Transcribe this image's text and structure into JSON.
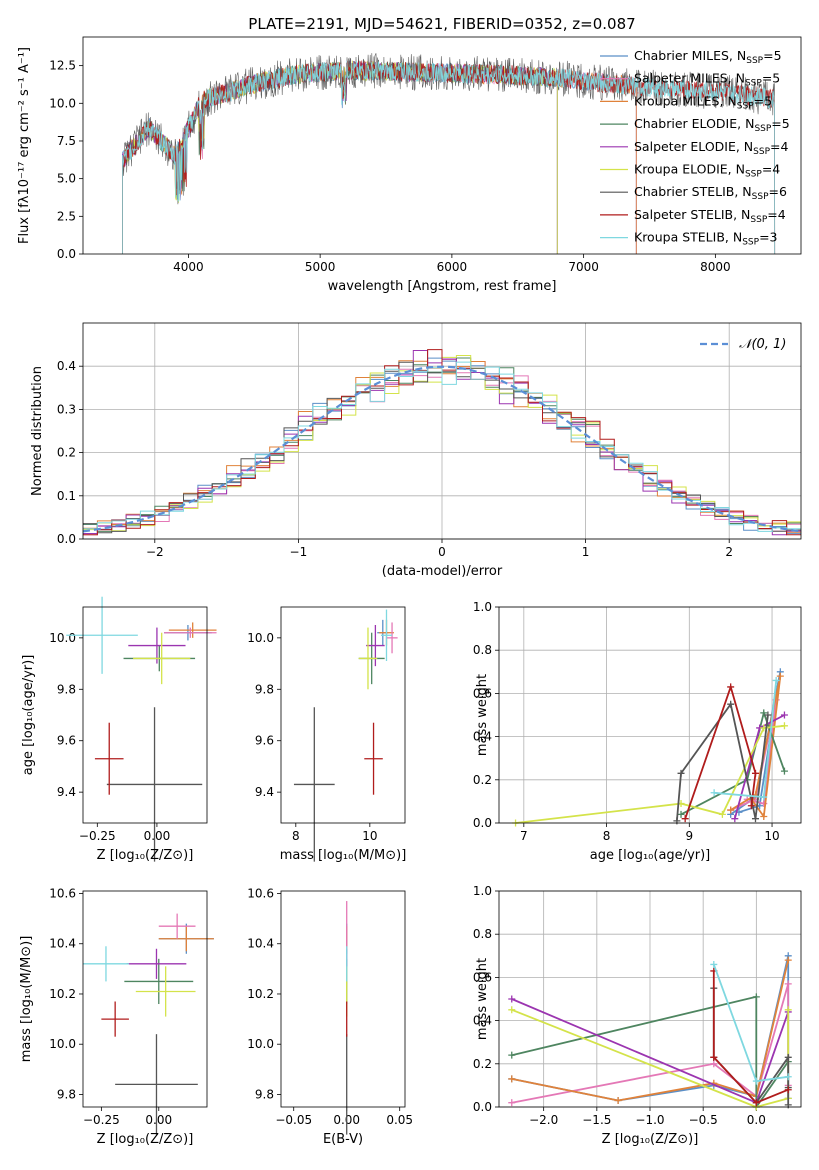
{
  "figure": {
    "title": "PLATE=2191, MJD=54621, FIBERID=0352, z=0.087"
  },
  "chart_data": [
    {
      "id": "spectrum",
      "type": "line",
      "xlabel": "wavelength [Angstrom, rest frame]",
      "ylabel": "Flux [fλ10⁻¹⁷ erg cm⁻² s⁻¹ A⁻¹]",
      "xlim": [
        3200,
        8650
      ],
      "ylim": [
        0,
        14.4
      ],
      "xticks": [
        "4000",
        "5000",
        "6000",
        "7000",
        "8000"
      ],
      "yticks": [
        "0.0",
        "2.5",
        "5.0",
        "7.5",
        "10.0",
        "12.5"
      ],
      "legend_position": "upper-right",
      "data_range_x": [
        3500,
        8450
      ],
      "anchors_x": [
        3500,
        3700,
        3900,
        4100,
        4300,
        4500,
        4800,
        5200,
        5600,
        6000,
        6400,
        6800,
        7200,
        7600,
        8000,
        8450
      ],
      "anchors_y": [
        6.2,
        8.4,
        6.5,
        10.2,
        10.7,
        11.3,
        11.9,
        12.2,
        12.1,
        12.0,
        11.9,
        11.7,
        11.3,
        11.0,
        10.8,
        10.3
      ],
      "series": [
        {
          "name": "Chabrier MILES, N_SSP=5",
          "color": "#5b8fc7",
          "x_end": 7400
        },
        {
          "name": "Salpeter MILES, N_SSP=5",
          "color": "#e478b6",
          "x_end": 7400
        },
        {
          "name": "Kroupa MILES, N_SSP=5",
          "color": "#e0823a",
          "x_end": 7400
        },
        {
          "name": "Chabrier ELODIE, N_SSP=5",
          "color": "#4e8560",
          "x_end": 6800
        },
        {
          "name": "Salpeter ELODIE, N_SSP=4",
          "color": "#9b35b0",
          "x_end": 6800
        },
        {
          "name": "Kroupa ELODIE, N_SSP=4",
          "color": "#d4e34a",
          "x_end": 6800
        },
        {
          "name": "Chabrier STELIB, N_SSP=6",
          "color": "#555555",
          "x_end": 8450
        },
        {
          "name": "Salpeter STELIB, N_SSP=4",
          "color": "#b01c1c",
          "x_end": 8450
        },
        {
          "name": "Kroupa STELIB, N_SSP=3",
          "color": "#7fd8e0",
          "x_end": 8450
        }
      ]
    },
    {
      "id": "residuals",
      "type": "histogram",
      "xlabel": "(data-model)/error",
      "ylabel": "Normed distribution",
      "xlim": [
        -2.5,
        2.5
      ],
      "ylim": [
        0,
        0.5
      ],
      "xticks": [
        "−2",
        "−1",
        "0",
        "1",
        "2"
      ],
      "yticks": [
        "0.0",
        "0.1",
        "0.2",
        "0.3",
        "0.4"
      ],
      "bin_width": 0.1,
      "grid": true,
      "reference_curve": {
        "label": "𝒩(0,1)",
        "color": "#5b8fd6",
        "style": "dashed",
        "mean": 0,
        "sigma": 1
      }
    },
    {
      "id": "age-vs-Z",
      "type": "scatter",
      "xlabel": "Z [log₁₀(Z/Z⊙)]",
      "ylabel": "age  [log₁₀(age/yr)]",
      "xlim": [
        -0.31,
        0.21
      ],
      "ylim": [
        9.28,
        10.12
      ],
      "xticks": [
        {
          "v": -0.25,
          "l": "−0.25"
        },
        {
          "v": 0,
          "l": "0.00"
        }
      ],
      "yticks": [
        {
          "v": 9.4,
          "l": "9.4"
        },
        {
          "v": 9.6,
          "l": "9.6"
        },
        {
          "v": 9.8,
          "l": "9.8"
        },
        {
          "v": 10.0,
          "l": "10.0"
        }
      ],
      "points": [
        {
          "x": 0.13,
          "y": 10.02,
          "xerr": 0.1,
          "yerr": 0.03,
          "color": "#5b8fc7"
        },
        {
          "x": 0.15,
          "y": 10.03,
          "xerr": 0.1,
          "yerr": 0.03,
          "color": "#e0823a"
        },
        {
          "x": 0.14,
          "y": 10.02,
          "xerr": 0.11,
          "yerr": 0.02,
          "color": "#e478b6"
        },
        {
          "x": 0.01,
          "y": 9.92,
          "xerr": 0.15,
          "yerr": 0.05,
          "color": "#4e8560"
        },
        {
          "x": 0.0,
          "y": 9.97,
          "xerr": 0.12,
          "yerr": 0.07,
          "color": "#9b35b0"
        },
        {
          "x": 0.02,
          "y": 9.92,
          "xerr": 0.12,
          "yerr": 0.1,
          "color": "#d4e34a"
        },
        {
          "x": -0.01,
          "y": 9.43,
          "xerr": 0.2,
          "yerr": 0.3,
          "color": "#555555"
        },
        {
          "x": -0.2,
          "y": 9.53,
          "xerr": 0.06,
          "yerr": 0.14,
          "color": "#b01c1c"
        },
        {
          "x": -0.23,
          "y": 10.01,
          "xerr": 0.15,
          "yerr": 0.15,
          "color": "#7fd8e0"
        }
      ]
    },
    {
      "id": "age-vs-mass",
      "type": "scatter",
      "xlabel": "mass [log₁₀(M/M⊙)]",
      "ylabel": "",
      "xlim": [
        7.6,
        10.95
      ],
      "ylim": [
        9.28,
        10.12
      ],
      "xticks": [
        {
          "v": 8,
          "l": "8"
        },
        {
          "v": 10,
          "l": "10"
        }
      ],
      "yticks": [
        {
          "v": 9.4,
          "l": "9.4"
        },
        {
          "v": 9.6,
          "l": "9.6"
        },
        {
          "v": 9.8,
          "l": "9.8"
        },
        {
          "v": 10.0,
          "l": "10.0"
        }
      ],
      "points": [
        {
          "x": 10.35,
          "y": 10.02,
          "xerr": 0.15,
          "yerr": 0.05,
          "color": "#5b8fc7"
        },
        {
          "x": 10.45,
          "y": 10.02,
          "xerr": 0.2,
          "yerr": 0.05,
          "color": "#e0823a"
        },
        {
          "x": 10.6,
          "y": 10.0,
          "xerr": 0.15,
          "yerr": 0.06,
          "color": "#e478b6"
        },
        {
          "x": 10.05,
          "y": 9.92,
          "xerr": 0.35,
          "yerr": 0.1,
          "color": "#4e8560"
        },
        {
          "x": 10.15,
          "y": 9.97,
          "xerr": 0.25,
          "yerr": 0.08,
          "color": "#9b35b0"
        },
        {
          "x": 9.95,
          "y": 9.92,
          "xerr": 0.25,
          "yerr": 0.12,
          "color": "#d4e34a"
        },
        {
          "x": 8.5,
          "y": 9.43,
          "xerr": 0.55,
          "yerr": 0.3,
          "color": "#555555"
        },
        {
          "x": 10.1,
          "y": 9.53,
          "xerr": 0.25,
          "yerr": 0.14,
          "color": "#b01c1c"
        },
        {
          "x": 10.45,
          "y": 10.01,
          "xerr": 0.15,
          "yerr": 0.1,
          "color": "#7fd8e0"
        }
      ]
    },
    {
      "id": "weight-vs-age",
      "type": "line",
      "xlabel": "age  [log₁₀(age/yr)]",
      "ylabel": "mass weight",
      "xlim": [
        6.7,
        10.35
      ],
      "ylim": [
        0,
        1.0
      ],
      "xticks": [
        {
          "v": 7,
          "l": "7"
        },
        {
          "v": 8,
          "l": "8"
        },
        {
          "v": 9,
          "l": "9"
        },
        {
          "v": 10,
          "l": "10"
        }
      ],
      "yticks": [
        {
          "v": 0,
          "l": "0.0"
        },
        {
          "v": 0.2,
          "l": "0.2"
        },
        {
          "v": 0.4,
          "l": "0.4"
        },
        {
          "v": 0.6,
          "l": "0.6"
        },
        {
          "v": 0.8,
          "l": "0.8"
        },
        {
          "v": 1.0,
          "l": "1.0"
        }
      ],
      "series": [
        {
          "name": "Chabrier MILES",
          "color": "#5b8fc7",
          "x": [
            9.5,
            9.8,
            10.1,
            9.85,
            9.6
          ],
          "y": [
            0.04,
            0.12,
            0.7,
            0.08,
            0.05
          ]
        },
        {
          "name": "Salpeter MILES",
          "color": "#e478b6",
          "x": [
            9.5,
            9.8,
            10.05,
            9.9,
            9.7
          ],
          "y": [
            0.06,
            0.11,
            0.57,
            0.09,
            0.11
          ]
        },
        {
          "name": "Kroupa MILES",
          "color": "#e0823a",
          "x": [
            9.5,
            9.8,
            10.1,
            9.9,
            9.75
          ],
          "y": [
            0.06,
            0.13,
            0.68,
            0.03,
            0.11
          ]
        },
        {
          "name": "Chabrier ELODIE",
          "color": "#4e8560",
          "x": [
            8.9,
            9.7,
            9.9,
            10.15
          ],
          "y": [
            0.04,
            0.2,
            0.51,
            0.24
          ]
        },
        {
          "name": "Salpeter ELODIE",
          "color": "#9b35b0",
          "x": [
            9.55,
            9.85,
            10.15
          ],
          "y": [
            0.02,
            0.44,
            0.5
          ]
        },
        {
          "name": "Kroupa ELODIE",
          "color": "#d4e34a",
          "x": [
            6.9,
            8.9,
            9.4,
            9.9,
            10.15
          ],
          "y": [
            0.0,
            0.09,
            0.04,
            0.44,
            0.45
          ]
        },
        {
          "name": "Chabrier STELIB",
          "color": "#555555",
          "x": [
            8.85,
            8.9,
            9.5,
            9.8,
            9.95
          ],
          "y": [
            0.01,
            0.23,
            0.55,
            0.02,
            0.5
          ]
        },
        {
          "name": "Salpeter STELIB",
          "color": "#b01c1c",
          "x": [
            8.95,
            9.5,
            9.8,
            9.75
          ],
          "y": [
            0.02,
            0.63,
            0.23,
            0.08
          ]
        },
        {
          "name": "Kroupa STELIB",
          "color": "#7fd8e0",
          "x": [
            9.3,
            9.9,
            10.05
          ],
          "y": [
            0.14,
            0.12,
            0.66
          ]
        }
      ]
    },
    {
      "id": "mass-vs-Z",
      "type": "scatter",
      "xlabel": "Z [log₁₀(Z/Z⊙)]",
      "ylabel": "mass [log₁₀(M/M⊙)]",
      "xlim": [
        -0.33,
        0.21
      ],
      "ylim": [
        9.75,
        10.61
      ],
      "xticks": [
        {
          "v": -0.25,
          "l": "−0.25"
        },
        {
          "v": 0,
          "l": "0.00"
        }
      ],
      "yticks": [
        {
          "v": 9.8,
          "l": "9.8"
        },
        {
          "v": 10.0,
          "l": "10.0"
        },
        {
          "v": 10.2,
          "l": "10.2"
        },
        {
          "v": 10.4,
          "l": "10.4"
        },
        {
          "v": 10.6,
          "l": "10.6"
        }
      ],
      "points": [
        {
          "x": 0.12,
          "y": 10.42,
          "xerr": 0.12,
          "yerr": 0.06,
          "color": "#5b8fc7"
        },
        {
          "x": 0.12,
          "y": 10.42,
          "xerr": 0.12,
          "yerr": 0.05,
          "color": "#e0823a"
        },
        {
          "x": 0.08,
          "y": 10.47,
          "xerr": 0.08,
          "yerr": 0.05,
          "color": "#e478b6"
        },
        {
          "x": 0.0,
          "y": 10.25,
          "xerr": 0.15,
          "yerr": 0.09,
          "color": "#4e8560"
        },
        {
          "x": -0.01,
          "y": 10.32,
          "xerr": 0.13,
          "yerr": 0.06,
          "color": "#9b35b0"
        },
        {
          "x": 0.03,
          "y": 10.21,
          "xerr": 0.13,
          "yerr": 0.1,
          "color": "#d4e34a"
        },
        {
          "x": -0.01,
          "y": 9.84,
          "xerr": 0.18,
          "yerr": 0.2,
          "color": "#555555"
        },
        {
          "x": -0.19,
          "y": 10.1,
          "xerr": 0.06,
          "yerr": 0.07,
          "color": "#b01c1c"
        },
        {
          "x": -0.23,
          "y": 10.32,
          "xerr": 0.1,
          "yerr": 0.07,
          "color": "#7fd8e0"
        }
      ]
    },
    {
      "id": "mass-vs-EBV",
      "type": "scatter",
      "xlabel": "E(B-V)",
      "ylabel": "",
      "xlim": [
        -0.062,
        0.055
      ],
      "ylim": [
        9.75,
        10.61
      ],
      "xticks": [
        {
          "v": -0.05,
          "l": "−0.05"
        },
        {
          "v": 0,
          "l": "0.00"
        },
        {
          "v": 0.05,
          "l": "0.05"
        }
      ],
      "yticks": [
        {
          "v": 9.8,
          "l": "9.8"
        },
        {
          "v": 10.0,
          "l": "10.0"
        },
        {
          "v": 10.2,
          "l": "10.2"
        },
        {
          "v": 10.4,
          "l": "10.4"
        },
        {
          "v": 10.6,
          "l": "10.6"
        }
      ],
      "points": [
        {
          "x": 0,
          "y": 10.42,
          "yerr": 0.06,
          "color": "#5b8fc7"
        },
        {
          "x": 0,
          "y": 10.42,
          "yerr": 0.05,
          "color": "#e0823a"
        },
        {
          "x": 0,
          "y": 10.47,
          "yerr": 0.1,
          "color": "#e478b6"
        },
        {
          "x": 0,
          "y": 10.25,
          "yerr": 0.09,
          "color": "#4e8560"
        },
        {
          "x": 0,
          "y": 10.32,
          "yerr": 0.06,
          "color": "#9b35b0"
        },
        {
          "x": 0,
          "y": 10.21,
          "yerr": 0.1,
          "color": "#d4e34a"
        },
        {
          "x": 0,
          "y": 9.84,
          "yerr": 0.2,
          "color": "#555555"
        },
        {
          "x": 0,
          "y": 10.1,
          "yerr": 0.07,
          "color": "#b01c1c"
        },
        {
          "x": 0,
          "y": 10.32,
          "yerr": 0.07,
          "color": "#7fd8e0"
        }
      ]
    },
    {
      "id": "weight-vs-Z",
      "type": "line",
      "xlabel": "Z [log₁₀(Z/Z⊙)]",
      "ylabel": "mass weight",
      "xlim": [
        -2.42,
        0.42
      ],
      "ylim": [
        0,
        1.0
      ],
      "xticks": [
        {
          "v": -2.0,
          "l": "−2.0"
        },
        {
          "v": -1.5,
          "l": "−1.5"
        },
        {
          "v": -1.0,
          "l": "−1.0"
        },
        {
          "v": -0.5,
          "l": "−0.5"
        },
        {
          "v": 0,
          "l": "0.0"
        }
      ],
      "yticks": [
        {
          "v": 0,
          "l": "0.0"
        },
        {
          "v": 0.2,
          "l": "0.2"
        },
        {
          "v": 0.4,
          "l": "0.4"
        },
        {
          "v": 0.6,
          "l": "0.6"
        },
        {
          "v": 0.8,
          "l": "0.8"
        },
        {
          "v": 1.0,
          "l": "1.0"
        }
      ],
      "series": [
        {
          "name": "Chabrier MILES",
          "color": "#5b8fc7",
          "x": [
            -2.3,
            -1.3,
            -0.4,
            0.0,
            0.3,
            0.3
          ],
          "y": [
            0.13,
            0.03,
            0.1,
            0.05,
            0.7,
            0.04
          ]
        },
        {
          "name": "Salpeter MILES",
          "color": "#e478b6",
          "x": [
            -2.3,
            -0.4,
            0.0,
            0.3,
            0.3
          ],
          "y": [
            0.02,
            0.2,
            0.05,
            0.57,
            0.1
          ]
        },
        {
          "name": "Kroupa MILES",
          "color": "#e0823a",
          "x": [
            -2.3,
            -1.3,
            -0.4,
            0.0,
            0.3
          ],
          "y": [
            0.13,
            0.03,
            0.11,
            0.05,
            0.68
          ]
        },
        {
          "name": "Chabrier ELODIE",
          "color": "#4e8560",
          "x": [
            -2.3,
            0.0,
            0.0,
            0.3
          ],
          "y": [
            0.24,
            0.51,
            0.0,
            0.21
          ]
        },
        {
          "name": "Salpeter ELODIE",
          "color": "#9b35b0",
          "x": [
            -2.3,
            0.0,
            0.3
          ],
          "y": [
            0.5,
            0.02,
            0.44
          ]
        },
        {
          "name": "Kroupa ELODIE",
          "color": "#d4e34a",
          "x": [
            -2.3,
            0.0,
            0.3,
            0.3
          ],
          "y": [
            0.45,
            0.0,
            0.04,
            0.45
          ]
        },
        {
          "name": "Chabrier STELIB",
          "color": "#555555",
          "x": [
            -0.4,
            -0.4,
            0.0,
            0.3,
            0.3,
            0.3
          ],
          "y": [
            0.55,
            0.23,
            0.02,
            0.23,
            0.09,
            0.01
          ]
        },
        {
          "name": "Salpeter STELIB",
          "color": "#b01c1c",
          "x": [
            -0.4,
            -0.4,
            0.0,
            0.3
          ],
          "y": [
            0.63,
            0.23,
            0.02,
            0.08
          ]
        },
        {
          "name": "Kroupa STELIB",
          "color": "#7fd8e0",
          "x": [
            -0.4,
            0.0,
            0.3
          ],
          "y": [
            0.66,
            0.12,
            0.14
          ]
        }
      ]
    }
  ]
}
